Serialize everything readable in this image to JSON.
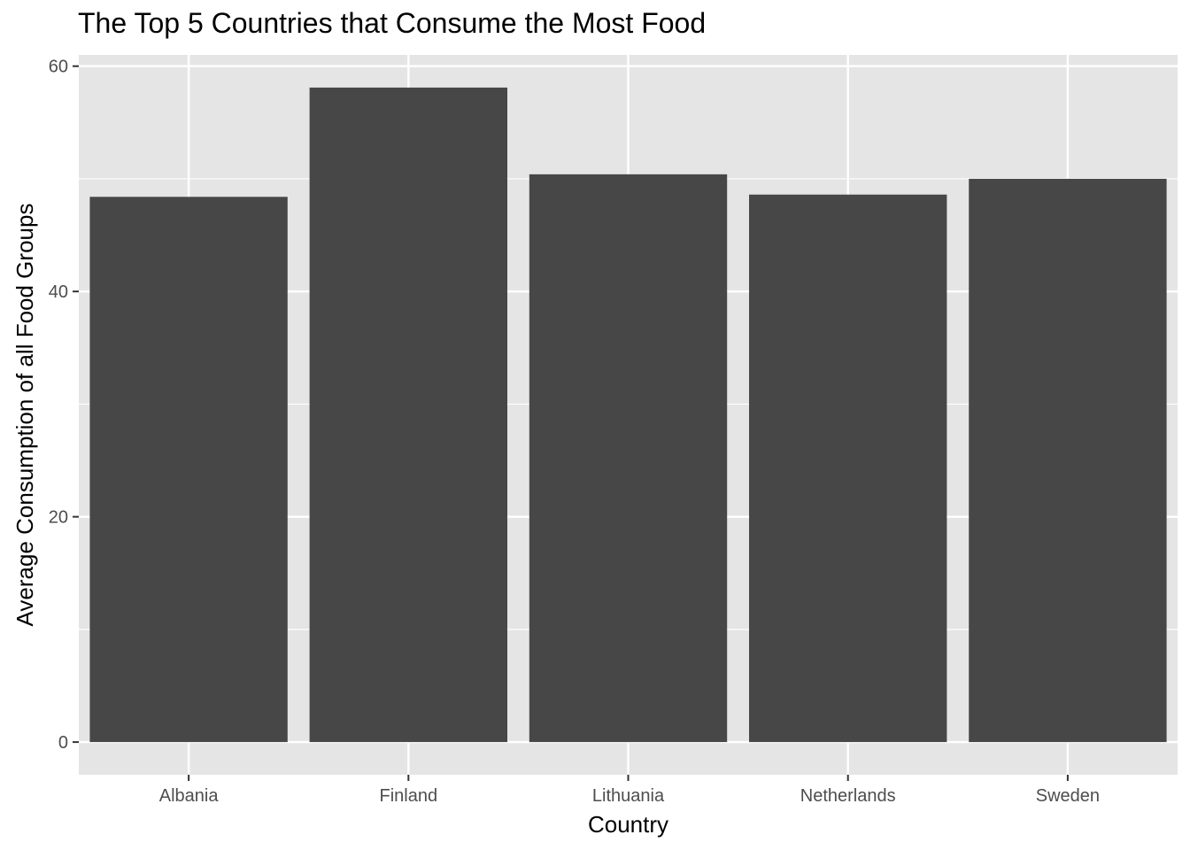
{
  "chart_data": {
    "type": "bar",
    "title": "The Top 5 Countries that Consume the Most Food",
    "xlabel": "Country",
    "ylabel": "Average Consumption of all Food Groups",
    "categories": [
      "Albania",
      "Finland",
      "Lithuania",
      "Netherlands",
      "Sweden"
    ],
    "values": [
      48.4,
      58.1,
      50.4,
      48.6,
      50.0
    ],
    "ylim": [
      -2.9,
      61
    ],
    "yticks": [
      0,
      20,
      40,
      60
    ],
    "grid": true,
    "colors": {
      "bar": "#474747",
      "panel": "#e5e5e5",
      "grid": "#ffffff"
    }
  }
}
